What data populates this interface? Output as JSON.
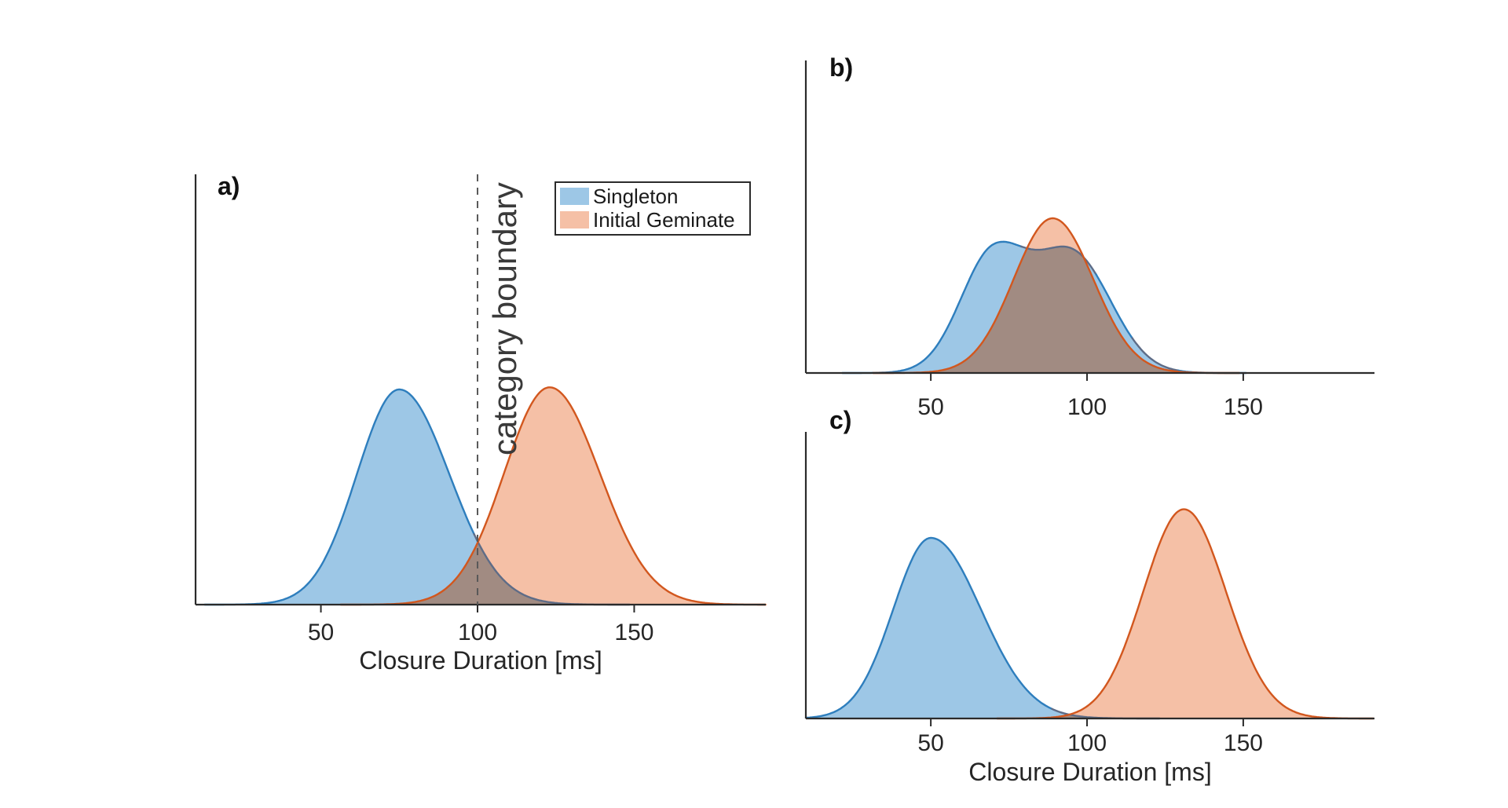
{
  "figure": {
    "background": "#ffffff",
    "description": "Three density panels comparing closure duration distributions of singleton vs initial geminate consonants"
  },
  "colors": {
    "blue_fill": "#9DC7E6",
    "blue_stroke": "#2E7EBD",
    "blue_stroke_muted": "#5E6C87",
    "orange_fill": "#F5C0A6",
    "orange_stroke": "#D2571E",
    "overlap_fill": "#A18B82",
    "axis": "#2b2b2b",
    "text": "#262626",
    "boundary_line": "#595959",
    "boundary_text": "#3a3a3a"
  },
  "legend": {
    "items": [
      {
        "label": "Singleton",
        "color": "#9DC7E6"
      },
      {
        "label": "Initial Geminate",
        "color": "#F5C0A6"
      }
    ]
  },
  "chart_data": {
    "type": "area",
    "subtype": "overlaid-density-curves",
    "xlabel": "Closure Duration [ms]",
    "xlim": [
      10,
      192
    ],
    "xticks": [
      50,
      100,
      150
    ],
    "grid": false,
    "legend_position": "top-right of panel a",
    "panels": [
      {
        "id": "a",
        "label": "a)",
        "has_xlabel": true,
        "has_legend": true,
        "boundary": {
          "x": 100,
          "label": "category boundary"
        },
        "series": [
          {
            "name": "Singleton",
            "color_key": "blue",
            "peak_frac": 0.5,
            "components": [
              {
                "mean": 75,
                "sd_left": 13.5,
                "sd_right": 16,
                "weight": 1
              }
            ]
          },
          {
            "name": "Initial Geminate",
            "color_key": "orange",
            "peak_frac": 0.505,
            "components": [
              {
                "mean": 123,
                "sd_left": 14.5,
                "sd_right": 16,
                "weight": 1
              }
            ]
          }
        ]
      },
      {
        "id": "b",
        "label": "b)",
        "has_xlabel": false,
        "has_legend": false,
        "series": [
          {
            "name": "Singleton",
            "color_key": "blue",
            "peak_frac": 0.42,
            "components": [
              {
                "mean": 70,
                "sd_left": 10.5,
                "sd_right": 11.5,
                "weight": 1
              },
              {
                "mean": 96,
                "sd_left": 11.5,
                "sd_right": 12,
                "weight": 0.95
              }
            ]
          },
          {
            "name": "Initial Geminate",
            "color_key": "orange",
            "peak_frac": 0.495,
            "components": [
              {
                "mean": 89,
                "sd_left": 12.5,
                "sd_right": 13,
                "weight": 1
              }
            ]
          }
        ]
      },
      {
        "id": "c",
        "label": "c)",
        "has_xlabel": true,
        "has_legend": false,
        "series": [
          {
            "name": "Singleton",
            "color_key": "blue",
            "peak_frac": 0.63,
            "components": [
              {
                "mean": 50,
                "sd_left": 12,
                "sd_right": 16,
                "weight": 1
              }
            ]
          },
          {
            "name": "Initial Geminate",
            "color_key": "orange",
            "peak_frac": 0.73,
            "components": [
              {
                "mean": 131,
                "sd_left": 13,
                "sd_right": 13.5,
                "weight": 1
              }
            ]
          }
        ]
      }
    ]
  }
}
